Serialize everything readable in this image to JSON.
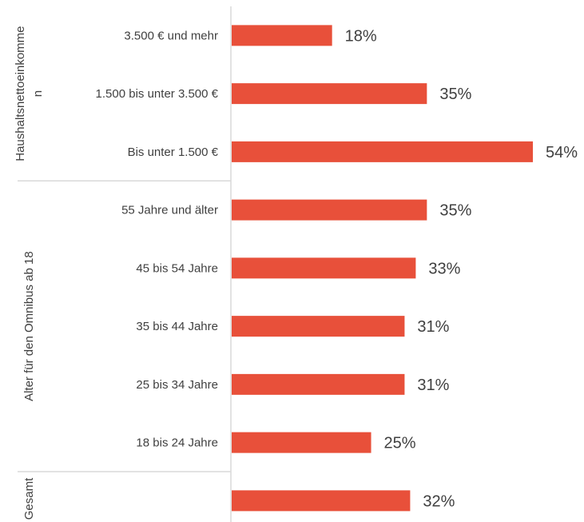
{
  "chart_data": {
    "type": "bar",
    "orientation": "horizontal",
    "categories": [
      "3.500 € und mehr",
      "1.500 bis unter 3.500 €",
      "Bis unter 1.500 €",
      "55 Jahre und älter",
      "45 bis 54 Jahre",
      "35 bis 44 Jahre",
      "25 bis 34 Jahre",
      "18 bis 24 Jahre",
      ""
    ],
    "values": [
      18,
      35,
      54,
      35,
      33,
      31,
      31,
      25,
      32
    ],
    "value_labels": [
      "18%",
      "35%",
      "54%",
      "35%",
      "33%",
      "31%",
      "31%",
      "25%",
      "32%"
    ],
    "unit": "%",
    "groups": [
      {
        "label_lines": [
          "Haushaltsnettoeinkomme",
          "n"
        ],
        "start": 0,
        "end": 2
      },
      {
        "label_lines": [
          "Alter für den Omnibus ab 18"
        ],
        "start": 3,
        "end": 7
      },
      {
        "label_lines": [
          "Gesamt"
        ],
        "start": 8,
        "end": 8
      }
    ],
    "bar_color": "#E8503A",
    "grid": false,
    "legend": "none",
    "xlim": [
      0,
      54
    ]
  }
}
